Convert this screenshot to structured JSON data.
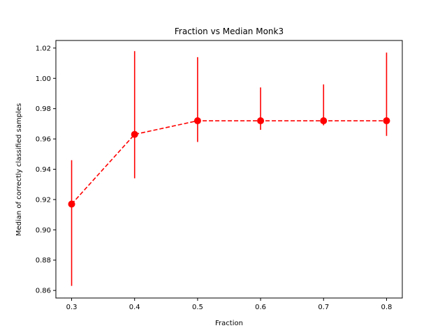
{
  "chart_data": {
    "type": "line",
    "title": "Fraction vs Median Monk3",
    "xlabel": "Fraction",
    "ylabel": "Median of correctly classified samples",
    "xlim": [
      0.275,
      0.825
    ],
    "ylim": [
      0.855,
      1.025
    ],
    "xticks": [
      0.3,
      0.4,
      0.5,
      0.6,
      0.7,
      0.8
    ],
    "xtick_labels": [
      "0.3",
      "0.4",
      "0.5",
      "0.6",
      "0.7",
      "0.8"
    ],
    "yticks": [
      0.86,
      0.88,
      0.9,
      0.92,
      0.94,
      0.96,
      0.98,
      1.0,
      1.02
    ],
    "ytick_labels": [
      "0.86",
      "0.88",
      "0.90",
      "0.92",
      "0.94",
      "0.96",
      "0.98",
      "1.00",
      "1.02"
    ],
    "grid": false,
    "series": [
      {
        "color": "#ff0000",
        "line_style": "dashed",
        "marker": "circle",
        "x": [
          0.3,
          0.4,
          0.5,
          0.6,
          0.7,
          0.8
        ],
        "y": [
          0.917,
          0.963,
          0.972,
          0.972,
          0.972,
          0.972
        ],
        "error_low": [
          0.863,
          0.934,
          0.958,
          0.966,
          0.969,
          0.962
        ],
        "error_high": [
          0.946,
          1.018,
          1.014,
          0.994,
          0.996,
          1.017
        ]
      }
    ]
  }
}
